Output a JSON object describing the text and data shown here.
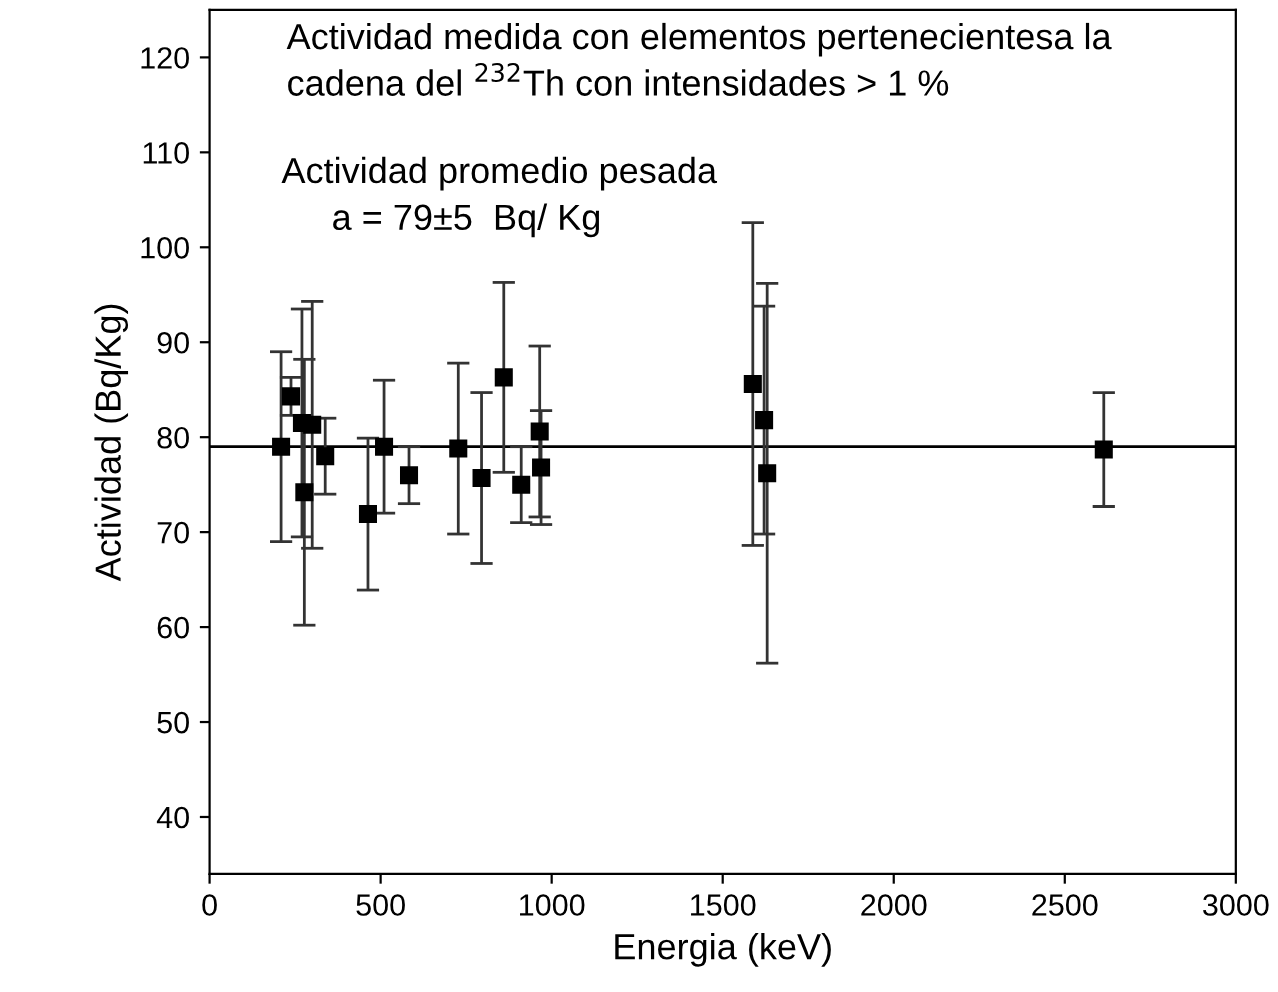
{
  "chart_data": {
    "type": "scatter",
    "xlabel": "Energia (keV)",
    "ylabel": "Actividad (Bq/Kg)",
    "x": [
      209,
      238,
      270,
      277,
      300,
      338,
      463,
      510,
      583,
      727,
      795,
      860,
      911,
      965,
      969,
      1588,
      1621,
      1630,
      2614
    ],
    "values": [
      79,
      84.3,
      81.5,
      74.2,
      81.3,
      78,
      71.9,
      79,
      76,
      78.8,
      75.7,
      86.3,
      75,
      80.6,
      76.8,
      85.6,
      81.8,
      76.2,
      78.7
    ],
    "errors": [
      10,
      2,
      12,
      14,
      13,
      4,
      8,
      7,
      3,
      9,
      9,
      10,
      4,
      9,
      6,
      17,
      12,
      20,
      6
    ],
    "color": "#000000",
    "marker": "square",
    "xlim": [
      0,
      3000
    ],
    "xticks": [
      0,
      500,
      1000,
      1500,
      2000,
      2500,
      3000
    ],
    "ylim": [
      34,
      125
    ],
    "yticks": [
      40,
      50,
      60,
      70,
      80,
      90,
      100,
      110,
      120
    ],
    "ref_lines": [
      {
        "axis": "y",
        "value": 79,
        "color": "#000000"
      }
    ],
    "annotations": [
      "Actividad medida con elementos pertenecientesa la\ncadena del $^{232}$Th con intensidades > 1 %",
      "Actividad promedio pesada\n     a = 79±5  Bq/ Kg"
    ],
    "grid": false,
    "legend": false
  }
}
